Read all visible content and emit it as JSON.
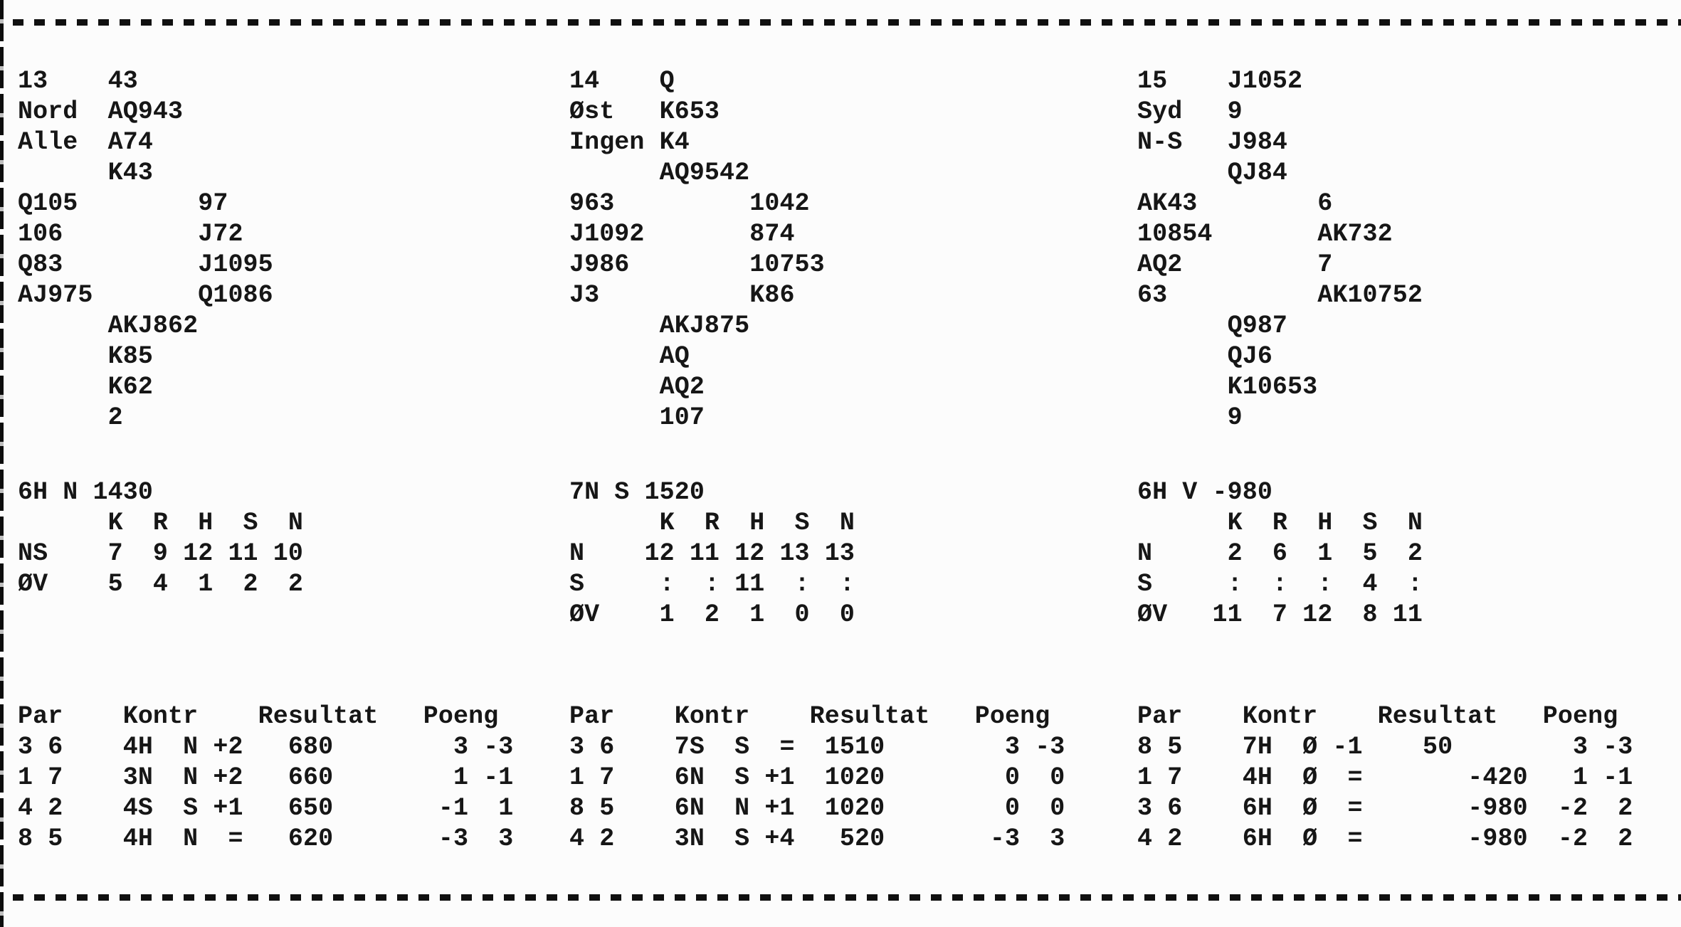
{
  "page": {
    "background": "#fcfcfc",
    "text_color": "#161616",
    "top_rule_style": "dashed",
    "bottom_rule_style": "dashed"
  },
  "boards": [
    {
      "number": "13",
      "dealer": "Nord",
      "vulnerability": "Alle",
      "hands": {
        "north": [
          "43",
          "AQ943",
          "A74",
          "K43"
        ],
        "west": [
          "Q105",
          "106",
          "Q83",
          "AJ975"
        ],
        "east": [
          "97",
          "J72",
          "J1095",
          "Q1086"
        ],
        "south": [
          "AKJ862",
          "K85",
          "K62",
          "2"
        ]
      },
      "par_line": "6H N 1430",
      "tricks": {
        "header": [
          "K",
          "R",
          "H",
          "S",
          "N"
        ],
        "rows": [
          {
            "label": "NS",
            "values": [
              "7",
              "9",
              "12",
              "11",
              "10"
            ]
          },
          {
            "label": "ØV",
            "values": [
              "5",
              "4",
              "1",
              "2",
              "2"
            ]
          }
        ]
      },
      "results": {
        "header": [
          "Par",
          "Kontr",
          "Resultat",
          "Poeng"
        ],
        "rows": [
          {
            "pair": "3 6",
            "contract": "4H",
            "declarer": "N",
            "score": "+2",
            "result_ns": "680",
            "result_ew": "",
            "poeng": [
              "3",
              "-3"
            ]
          },
          {
            "pair": "1 7",
            "contract": "3N",
            "declarer": "N",
            "score": "+2",
            "result_ns": "660",
            "result_ew": "",
            "poeng": [
              "1",
              "-1"
            ]
          },
          {
            "pair": "4 2",
            "contract": "4S",
            "declarer": "S",
            "score": "+1",
            "result_ns": "650",
            "result_ew": "",
            "poeng": [
              "-1",
              "1"
            ]
          },
          {
            "pair": "8 5",
            "contract": "4H",
            "declarer": "N",
            "score": "=",
            "result_ns": "620",
            "result_ew": "",
            "poeng": [
              "-3",
              "3"
            ]
          }
        ]
      }
    },
    {
      "number": "14",
      "dealer": "Øst",
      "vulnerability": "Ingen",
      "hands": {
        "north": [
          "Q",
          "K653",
          "K4",
          "AQ9542"
        ],
        "west": [
          "963",
          "J1092",
          "J986",
          "J3"
        ],
        "east": [
          "1042",
          "874",
          "10753",
          "K86"
        ],
        "south": [
          "AKJ875",
          "AQ",
          "AQ2",
          "107"
        ]
      },
      "par_line": "7N S 1520",
      "tricks": {
        "header": [
          "K",
          "R",
          "H",
          "S",
          "N"
        ],
        "rows": [
          {
            "label": "N",
            "values": [
              "12",
              "11",
              "12",
              "13",
              "13"
            ]
          },
          {
            "label": "S",
            "values": [
              ":",
              ":",
              "11",
              ":",
              ":"
            ]
          },
          {
            "label": "ØV",
            "values": [
              "1",
              "2",
              "1",
              "0",
              "0"
            ]
          }
        ]
      },
      "results": {
        "header": [
          "Par",
          "Kontr",
          "Resultat",
          "Poeng"
        ],
        "rows": [
          {
            "pair": "3 6",
            "contract": "7S",
            "declarer": "S",
            "score": "=",
            "result_ns": "1510",
            "result_ew": "",
            "poeng": [
              "3",
              "-3"
            ]
          },
          {
            "pair": "1 7",
            "contract": "6N",
            "declarer": "S",
            "score": "+1",
            "result_ns": "1020",
            "result_ew": "",
            "poeng": [
              "0",
              "0"
            ]
          },
          {
            "pair": "8 5",
            "contract": "6N",
            "declarer": "N",
            "score": "+1",
            "result_ns": "1020",
            "result_ew": "",
            "poeng": [
              "0",
              "0"
            ]
          },
          {
            "pair": "4 2",
            "contract": "3N",
            "declarer": "S",
            "score": "+4",
            "result_ns": "520",
            "result_ew": "",
            "poeng": [
              "-3",
              "3"
            ]
          }
        ]
      }
    },
    {
      "number": "15",
      "dealer": "Syd",
      "vulnerability": "N-S",
      "hands": {
        "north": [
          "J1052",
          "9",
          "J984",
          "QJ84"
        ],
        "west": [
          "AK43",
          "10854",
          "AQ2",
          "63"
        ],
        "east": [
          "6",
          "AK732",
          "7",
          "AK10752"
        ],
        "south": [
          "Q987",
          "QJ6",
          "K10653",
          "9"
        ]
      },
      "par_line": "6H V -980",
      "tricks": {
        "header": [
          "K",
          "R",
          "H",
          "S",
          "N"
        ],
        "rows": [
          {
            "label": "N",
            "values": [
              "2",
              "6",
              "1",
              "5",
              "2"
            ]
          },
          {
            "label": "S",
            "values": [
              ":",
              ":",
              ":",
              "4",
              ":"
            ]
          },
          {
            "label": "ØV",
            "values": [
              "11",
              "7",
              "12",
              "8",
              "11"
            ]
          }
        ]
      },
      "results": {
        "header": [
          "Par",
          "Kontr",
          "Resultat",
          "Poeng"
        ],
        "rows": [
          {
            "pair": "8 5",
            "contract": "7H",
            "declarer": "Ø",
            "score": "-1",
            "result_ns": "50",
            "result_ew": "",
            "poeng": [
              "3",
              "-3"
            ]
          },
          {
            "pair": "1 7",
            "contract": "4H",
            "declarer": "Ø",
            "score": "=",
            "result_ns": "",
            "result_ew": "-420",
            "poeng": [
              "1",
              "-1"
            ]
          },
          {
            "pair": "3 6",
            "contract": "6H",
            "declarer": "Ø",
            "score": "=",
            "result_ns": "",
            "result_ew": "-980",
            "poeng": [
              "-2",
              "2"
            ]
          },
          {
            "pair": "4 2",
            "contract": "6H",
            "declarer": "Ø",
            "score": "=",
            "result_ns": "",
            "result_ew": "-980",
            "poeng": [
              "-2",
              "2"
            ]
          }
        ]
      }
    }
  ]
}
